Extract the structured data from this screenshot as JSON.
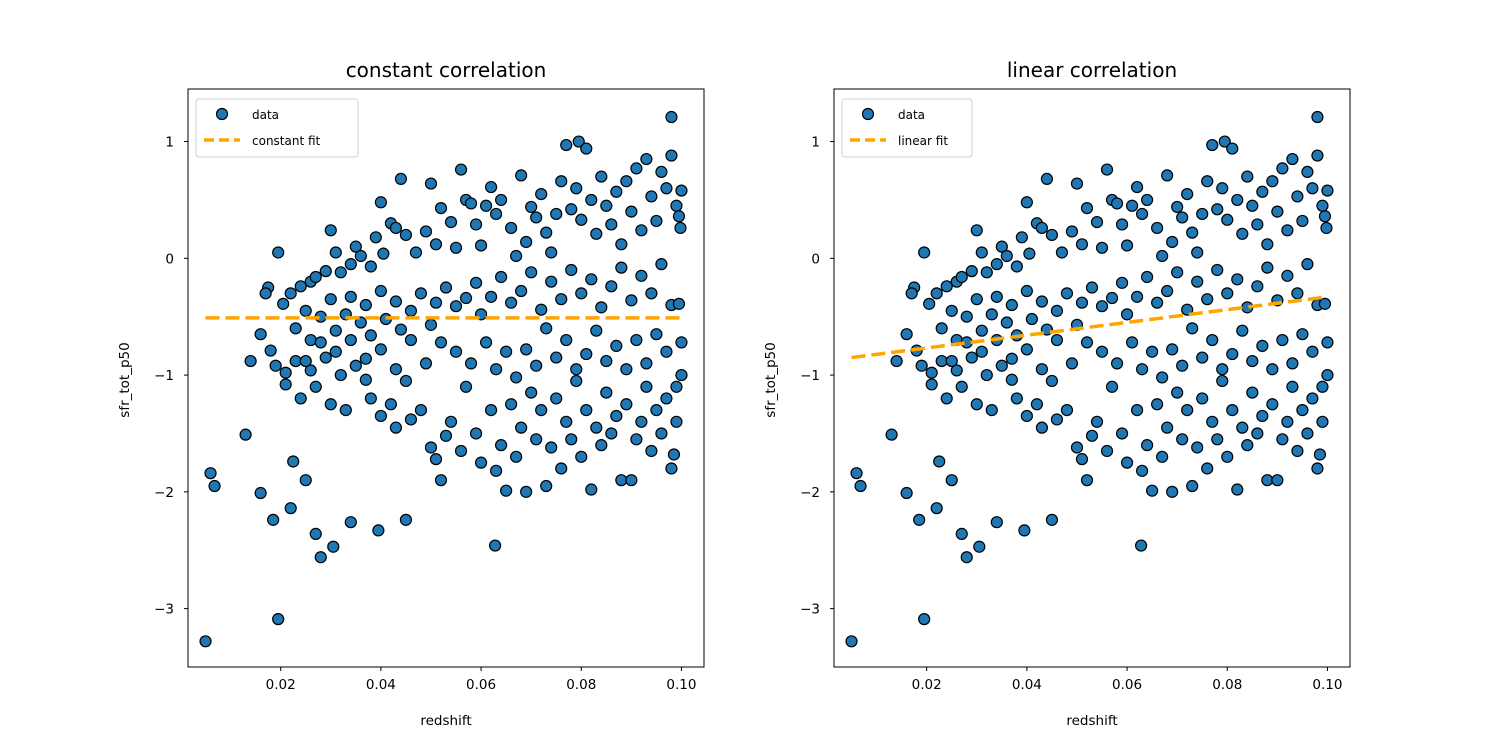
{
  "figure": {
    "background": "#ffffff"
  },
  "chart_data": [
    {
      "type": "scatter",
      "title": "constant correlation",
      "xlabel": "redshift",
      "ylabel": "sfr_tot_p50",
      "xlim": [
        0.0015,
        0.1045
      ],
      "ylim": [
        -3.5,
        1.45
      ],
      "xticks": [
        0.02,
        0.04,
        0.06,
        0.08,
        0.1
      ],
      "xtick_labels": [
        "0.02",
        "0.04",
        "0.06",
        "0.08",
        "0.10"
      ],
      "yticks": [
        1,
        0,
        -1,
        -2,
        -3
      ],
      "ytick_labels": [
        "1",
        "0",
        "−1",
        "−2",
        "−3"
      ],
      "grid": false,
      "legend_position": "top-left",
      "series": [
        {
          "name": "data",
          "kind": "scatter",
          "color": "#1f77b4",
          "edgecolor": "#000000",
          "points_ref": "shared_points"
        },
        {
          "name": "constant fit",
          "kind": "line",
          "style": "dashed",
          "color": "#ffa500",
          "x": [
            0.005,
            0.1
          ],
          "y": [
            -0.51,
            -0.51
          ]
        }
      ]
    },
    {
      "type": "scatter",
      "title": "linear correlation",
      "xlabel": "redshift",
      "ylabel": "sfr_tot_p50",
      "xlim": [
        0.0015,
        0.1045
      ],
      "ylim": [
        -3.5,
        1.45
      ],
      "xticks": [
        0.02,
        0.04,
        0.06,
        0.08,
        0.1
      ],
      "xtick_labels": [
        "0.02",
        "0.04",
        "0.06",
        "0.08",
        "0.10"
      ],
      "yticks": [
        1,
        0,
        -1,
        -2,
        -3
      ],
      "ytick_labels": [
        "1",
        "0",
        "−1",
        "−2",
        "−3"
      ],
      "grid": false,
      "legend_position": "top-left",
      "series": [
        {
          "name": "data",
          "kind": "scatter",
          "color": "#1f77b4",
          "edgecolor": "#000000",
          "points_ref": "shared_points"
        },
        {
          "name": "linear fit",
          "kind": "line",
          "style": "dashed",
          "color": "#ffa500",
          "x": [
            0.005,
            0.1
          ],
          "y": [
            -0.85,
            -0.33
          ]
        }
      ]
    }
  ],
  "shared_points": [
    [
      0.005,
      -3.28
    ],
    [
      0.0195,
      -3.09
    ],
    [
      0.006,
      -1.84
    ],
    [
      0.0068,
      -1.95
    ],
    [
      0.013,
      -1.51
    ],
    [
      0.016,
      -2.01
    ],
    [
      0.0185,
      -2.24
    ],
    [
      0.022,
      -2.14
    ],
    [
      0.0225,
      -1.74
    ],
    [
      0.025,
      -1.9
    ],
    [
      0.027,
      -2.36
    ],
    [
      0.028,
      -2.56
    ],
    [
      0.0305,
      -2.47
    ],
    [
      0.034,
      -2.26
    ],
    [
      0.0395,
      -2.33
    ],
    [
      0.045,
      -2.24
    ],
    [
      0.0628,
      -2.46
    ],
    [
      0.0195,
      0.05
    ],
    [
      0.0175,
      -0.25
    ],
    [
      0.017,
      -0.3
    ],
    [
      0.0205,
      -0.39
    ],
    [
      0.022,
      -0.3
    ],
    [
      0.024,
      -0.24
    ],
    [
      0.026,
      -0.2
    ],
    [
      0.027,
      -0.16
    ],
    [
      0.029,
      -0.11
    ],
    [
      0.03,
      0.24
    ],
    [
      0.031,
      0.05
    ],
    [
      0.032,
      -0.12
    ],
    [
      0.034,
      -0.05
    ],
    [
      0.035,
      0.1
    ],
    [
      0.036,
      0.02
    ],
    [
      0.038,
      -0.07
    ],
    [
      0.039,
      0.18
    ],
    [
      0.04,
      0.48
    ],
    [
      0.0405,
      0.04
    ],
    [
      0.042,
      0.3
    ],
    [
      0.043,
      0.26
    ],
    [
      0.044,
      0.68
    ],
    [
      0.045,
      0.2
    ],
    [
      0.047,
      0.05
    ],
    [
      0.049,
      0.23
    ],
    [
      0.05,
      0.64
    ],
    [
      0.051,
      0.12
    ],
    [
      0.052,
      0.43
    ],
    [
      0.054,
      0.31
    ],
    [
      0.055,
      0.09
    ],
    [
      0.056,
      0.76
    ],
    [
      0.057,
      0.5
    ],
    [
      0.058,
      0.47
    ],
    [
      0.059,
      0.29
    ],
    [
      0.06,
      0.11
    ],
    [
      0.061,
      0.45
    ],
    [
      0.062,
      0.61
    ],
    [
      0.063,
      0.38
    ],
    [
      0.064,
      0.5
    ],
    [
      0.066,
      0.26
    ],
    [
      0.067,
      0.02
    ],
    [
      0.068,
      0.71
    ],
    [
      0.069,
      0.14
    ],
    [
      0.07,
      0.44
    ],
    [
      0.071,
      0.35
    ],
    [
      0.072,
      0.55
    ],
    [
      0.073,
      0.22
    ],
    [
      0.074,
      0.05
    ],
    [
      0.075,
      0.38
    ],
    [
      0.076,
      0.66
    ],
    [
      0.077,
      0.97
    ],
    [
      0.078,
      0.42
    ],
    [
      0.079,
      0.6
    ],
    [
      0.0795,
      1.0
    ],
    [
      0.08,
      0.33
    ],
    [
      0.081,
      0.94
    ],
    [
      0.082,
      0.5
    ],
    [
      0.083,
      0.21
    ],
    [
      0.084,
      0.7
    ],
    [
      0.085,
      0.45
    ],
    [
      0.086,
      0.29
    ],
    [
      0.087,
      0.57
    ],
    [
      0.088,
      0.12
    ],
    [
      0.089,
      0.66
    ],
    [
      0.09,
      0.4
    ],
    [
      0.091,
      0.77
    ],
    [
      0.092,
      0.24
    ],
    [
      0.093,
      0.85
    ],
    [
      0.094,
      0.53
    ],
    [
      0.095,
      0.32
    ],
    [
      0.096,
      0.74
    ],
    [
      0.097,
      0.6
    ],
    [
      0.098,
      1.21
    ],
    [
      0.098,
      0.88
    ],
    [
      0.099,
      0.45
    ],
    [
      0.0995,
      0.36
    ],
    [
      0.1,
      0.58
    ],
    [
      0.0998,
      0.26
    ],
    [
      0.023,
      -0.6
    ],
    [
      0.025,
      -0.45
    ],
    [
      0.026,
      -0.7
    ],
    [
      0.028,
      -0.5
    ],
    [
      0.03,
      -0.35
    ],
    [
      0.031,
      -0.62
    ],
    [
      0.033,
      -0.48
    ],
    [
      0.034,
      -0.33
    ],
    [
      0.036,
      -0.55
    ],
    [
      0.037,
      -0.4
    ],
    [
      0.038,
      -0.66
    ],
    [
      0.04,
      -0.28
    ],
    [
      0.041,
      -0.52
    ],
    [
      0.043,
      -0.37
    ],
    [
      0.044,
      -0.61
    ],
    [
      0.046,
      -0.45
    ],
    [
      0.048,
      -0.3
    ],
    [
      0.05,
      -0.57
    ],
    [
      0.051,
      -0.38
    ],
    [
      0.053,
      -0.25
    ],
    [
      0.055,
      -0.41
    ],
    [
      0.057,
      -0.34
    ],
    [
      0.059,
      -0.21
    ],
    [
      0.06,
      -0.48
    ],
    [
      0.062,
      -0.33
    ],
    [
      0.064,
      -0.16
    ],
    [
      0.066,
      -0.38
    ],
    [
      0.068,
      -0.28
    ],
    [
      0.07,
      -0.12
    ],
    [
      0.072,
      -0.44
    ],
    [
      0.074,
      -0.2
    ],
    [
      0.076,
      -0.35
    ],
    [
      0.078,
      -0.1
    ],
    [
      0.08,
      -0.3
    ],
    [
      0.082,
      -0.18
    ],
    [
      0.084,
      -0.42
    ],
    [
      0.086,
      -0.24
    ],
    [
      0.088,
      -0.08
    ],
    [
      0.09,
      -0.36
    ],
    [
      0.092,
      -0.15
    ],
    [
      0.094,
      -0.3
    ],
    [
      0.096,
      -0.05
    ],
    [
      0.098,
      -0.4
    ],
    [
      0.0995,
      -0.39
    ],
    [
      0.014,
      -0.88
    ],
    [
      0.016,
      -0.65
    ],
    [
      0.018,
      -0.79
    ],
    [
      0.019,
      -0.92
    ],
    [
      0.021,
      -0.98
    ],
    [
      0.021,
      -1.08
    ],
    [
      0.023,
      -0.88
    ],
    [
      0.024,
      -1.2
    ],
    [
      0.026,
      -0.96
    ],
    [
      0.027,
      -1.1
    ],
    [
      0.029,
      -0.85
    ],
    [
      0.03,
      -1.25
    ],
    [
      0.032,
      -1.0
    ],
    [
      0.033,
      -1.3
    ],
    [
      0.035,
      -0.92
    ],
    [
      0.037,
      -1.04
    ],
    [
      0.038,
      -1.2
    ],
    [
      0.04,
      -1.35
    ],
    [
      0.042,
      -1.25
    ],
    [
      0.043,
      -1.45
    ],
    [
      0.045,
      -1.05
    ],
    [
      0.046,
      -1.38
    ],
    [
      0.048,
      -1.3
    ],
    [
      0.05,
      -1.62
    ],
    [
      0.051,
      -1.72
    ],
    [
      0.052,
      -1.9
    ],
    [
      0.053,
      -1.52
    ],
    [
      0.054,
      -1.4
    ],
    [
      0.056,
      -1.65
    ],
    [
      0.057,
      -1.1
    ],
    [
      0.059,
      -1.5
    ],
    [
      0.06,
      -1.75
    ],
    [
      0.062,
      -1.3
    ],
    [
      0.063,
      -1.82
    ],
    [
      0.064,
      -1.6
    ],
    [
      0.065,
      -1.99
    ],
    [
      0.066,
      -1.25
    ],
    [
      0.067,
      -1.7
    ],
    [
      0.068,
      -1.45
    ],
    [
      0.069,
      -2.0
    ],
    [
      0.07,
      -1.15
    ],
    [
      0.071,
      -1.55
    ],
    [
      0.072,
      -1.3
    ],
    [
      0.073,
      -1.95
    ],
    [
      0.074,
      -1.62
    ],
    [
      0.075,
      -1.2
    ],
    [
      0.076,
      -1.8
    ],
    [
      0.077,
      -1.4
    ],
    [
      0.078,
      -1.55
    ],
    [
      0.079,
      -1.05
    ],
    [
      0.08,
      -1.7
    ],
    [
      0.081,
      -1.3
    ],
    [
      0.082,
      -1.98
    ],
    [
      0.083,
      -1.45
    ],
    [
      0.084,
      -1.6
    ],
    [
      0.085,
      -1.15
    ],
    [
      0.086,
      -1.5
    ],
    [
      0.087,
      -1.35
    ],
    [
      0.088,
      -1.9
    ],
    [
      0.089,
      -1.25
    ],
    [
      0.09,
      -1.9
    ],
    [
      0.091,
      -1.55
    ],
    [
      0.092,
      -1.4
    ],
    [
      0.093,
      -1.1
    ],
    [
      0.094,
      -1.65
    ],
    [
      0.095,
      -1.3
    ],
    [
      0.096,
      -1.5
    ],
    [
      0.097,
      -1.2
    ],
    [
      0.098,
      -1.8
    ],
    [
      0.0985,
      -1.68
    ],
    [
      0.099,
      -1.4
    ],
    [
      0.1,
      -1.0
    ],
    [
      0.1,
      -0.72
    ],
    [
      0.099,
      -1.1
    ],
    [
      0.097,
      -0.8
    ],
    [
      0.095,
      -0.65
    ],
    [
      0.093,
      -0.9
    ],
    [
      0.091,
      -0.7
    ],
    [
      0.089,
      -0.95
    ],
    [
      0.087,
      -0.75
    ],
    [
      0.085,
      -0.88
    ],
    [
      0.083,
      -0.62
    ],
    [
      0.081,
      -0.82
    ],
    [
      0.079,
      -0.95
    ],
    [
      0.077,
      -0.7
    ],
    [
      0.075,
      -0.85
    ],
    [
      0.073,
      -0.6
    ],
    [
      0.071,
      -0.92
    ],
    [
      0.069,
      -0.78
    ],
    [
      0.067,
      -1.02
    ],
    [
      0.065,
      -0.8
    ],
    [
      0.063,
      -0.95
    ],
    [
      0.061,
      -0.72
    ],
    [
      0.058,
      -0.9
    ],
    [
      0.055,
      -0.8
    ],
    [
      0.052,
      -0.72
    ],
    [
      0.049,
      -0.9
    ],
    [
      0.046,
      -0.7
    ],
    [
      0.043,
      -0.95
    ],
    [
      0.04,
      -0.78
    ],
    [
      0.037,
      -0.86
    ],
    [
      0.034,
      -0.7
    ],
    [
      0.031,
      -0.8
    ],
    [
      0.028,
      -0.72
    ],
    [
      0.025,
      -0.88
    ]
  ]
}
